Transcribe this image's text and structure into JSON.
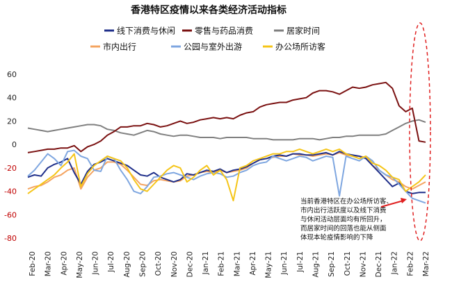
{
  "chart_data": {
    "type": "line",
    "title": "香港特区疫情以来各类经济活动指标",
    "xlabel": "",
    "ylabel": "",
    "ylim": [
      -80,
      60
    ],
    "y_ticks": [
      60,
      40,
      20,
      0,
      -20,
      -40,
      -60,
      -80
    ],
    "x_ticks": [
      "Feb-20",
      "Mar-20",
      "Apr-20",
      "May-20",
      "Jun-20",
      "Jul-20",
      "Aug-20",
      "Sep-20",
      "Oct-20",
      "Nov-20",
      "Dec-20",
      "Jan-21",
      "Feb-21",
      "Mar-21",
      "Apr-21",
      "May-21",
      "Jun-21",
      "Jul-21",
      "Aug-21",
      "Sep-21",
      "Oct-21",
      "Nov-21",
      "Dec-21",
      "Jan-22",
      "Feb-22",
      "Mar-22"
    ],
    "grid": false,
    "legend_position": "top",
    "annotation": "当前香港特区在办公场所访客、\n市内出行活跃度以及线下消费\n与休闲活动层面均有所回升，\n而居家时间的回落也能从侧面\n体现本轮疫情影响的下降",
    "series": [
      {
        "name": "线下消费与休闲",
        "color": "#1f2f8a",
        "values": [
          -28,
          -26,
          -27,
          -20,
          -17,
          -15,
          -12,
          -24,
          -34,
          -23,
          -17,
          -15,
          -12,
          -14,
          -16,
          -18,
          -22,
          -26,
          -27,
          -24,
          -28,
          -30,
          -32,
          -30,
          -25,
          -26,
          -24,
          -22,
          -23,
          -21,
          -24,
          -22,
          -21,
          -19,
          -16,
          -13,
          -12,
          -10,
          -9,
          -10,
          -8,
          -8,
          -9,
          -9,
          -8,
          -7,
          -9,
          -6,
          -8,
          -9,
          -10,
          -12,
          -18,
          -24,
          -30,
          -36,
          -33,
          -40,
          -42,
          -41,
          -41
        ]
      },
      {
        "name": "零售与药品消费",
        "color": "#7a1010",
        "values": [
          -7,
          -6,
          -5,
          -4,
          -4,
          -3,
          -3,
          -1,
          -6,
          -2,
          0,
          3,
          8,
          11,
          15,
          15,
          16,
          16,
          18,
          17,
          15,
          16,
          18,
          20,
          18,
          19,
          21,
          22,
          23,
          22,
          23,
          22,
          25,
          27,
          28,
          32,
          34,
          35,
          36,
          36,
          38,
          39,
          40,
          44,
          46,
          46,
          45,
          43,
          46,
          49,
          48,
          49,
          51,
          52,
          53,
          48,
          33,
          28,
          31,
          3,
          2
        ]
      },
      {
        "name": "居家时间",
        "color": "#7f7f7f",
        "values": [
          14,
          13,
          12,
          11,
          12,
          13,
          14,
          15,
          16,
          17,
          17,
          16,
          13,
          12,
          10,
          9,
          8,
          10,
          12,
          11,
          9,
          8,
          7,
          8,
          8,
          7,
          6,
          6,
          6,
          5,
          6,
          6,
          6,
          6,
          5,
          5,
          5,
          4,
          4,
          4,
          4,
          5,
          5,
          5,
          4,
          5,
          6,
          6,
          7,
          7,
          8,
          8,
          8,
          8,
          9,
          12,
          15,
          18,
          20,
          21,
          19
        ]
      },
      {
        "name": "市内出行",
        "color": "#f4a460",
        "values": [
          -38,
          -36,
          -35,
          -32,
          -28,
          -26,
          -22,
          -20,
          -38,
          -28,
          -22,
          -20,
          -15,
          -15,
          -17,
          -22,
          -28,
          -34,
          -35,
          -31,
          -30,
          -31,
          -32,
          -31,
          -27,
          -26,
          -24,
          -23,
          -24,
          -22,
          -24,
          -23,
          -22,
          -20,
          -16,
          -13,
          -12,
          -11,
          -10,
          -10,
          -8,
          -9,
          -9,
          -10,
          -9,
          -8,
          -9,
          -7,
          -9,
          -10,
          -10,
          -11,
          -18,
          -22,
          -26,
          -30,
          -32,
          -36,
          -38,
          -35,
          -32
        ]
      },
      {
        "name": "公园与室外出游",
        "color": "#7ea6e0",
        "values": [
          -27,
          -22,
          -15,
          -8,
          -12,
          -18,
          -6,
          -5,
          -10,
          -12,
          -22,
          -23,
          -10,
          -12,
          -22,
          -30,
          -40,
          -42,
          -36,
          -28,
          -27,
          -25,
          -24,
          -26,
          -28,
          -30,
          -27,
          -25,
          -24,
          -25,
          -28,
          -27,
          -24,
          -22,
          -18,
          -16,
          -15,
          -10,
          -12,
          -14,
          -12,
          -10,
          -11,
          -14,
          -12,
          -10,
          -11,
          -44,
          -10,
          -12,
          -14,
          -10,
          -14,
          -22,
          -26,
          -28,
          -34,
          -40,
          -46,
          -48,
          -50
        ]
      },
      {
        "name": "办公场所访客",
        "color": "#f5c518",
        "values": [
          -42,
          -38,
          -34,
          -30,
          -26,
          -20,
          -15,
          -8,
          -36,
          -25,
          -18,
          -14,
          -10,
          -12,
          -14,
          -20,
          -30,
          -38,
          -40,
          -34,
          -28,
          -22,
          -18,
          -20,
          -32,
          -28,
          -22,
          -18,
          -26,
          -22,
          -30,
          -48,
          -20,
          -18,
          -14,
          -12,
          -10,
          -8,
          -8,
          -6,
          -6,
          -4,
          -6,
          -8,
          -6,
          -4,
          -6,
          -4,
          -8,
          -10,
          -12,
          -10,
          -16,
          -18,
          -22,
          -28,
          -30,
          -40,
          -36,
          -32,
          -26
        ]
      }
    ]
  }
}
